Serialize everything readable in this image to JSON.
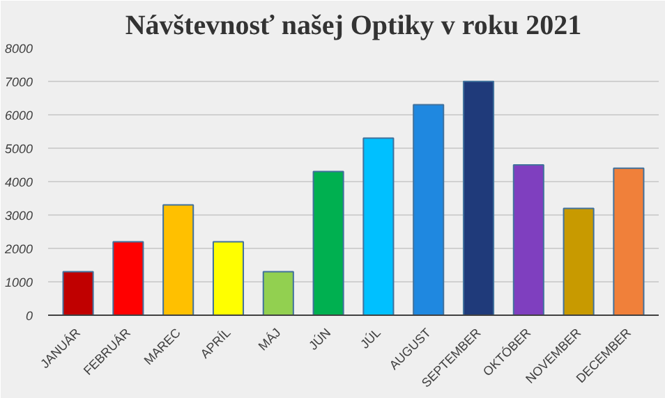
{
  "chart_data": {
    "type": "bar",
    "title": "Návštevnosť našej Optiky v roku 2021",
    "categories": [
      "JANUÁR",
      "FEBRUÁR",
      "MAREC",
      "APRÍL",
      "MÁJ",
      "JÚN",
      "JÚL",
      "AUGUST",
      "SEPTEMBER",
      "OKTÓBER",
      "NOVEMBER",
      "DECEMBER"
    ],
    "values": [
      1300,
      2200,
      3300,
      2200,
      1300,
      4300,
      5300,
      6300,
      7000,
      4500,
      3200,
      4400
    ],
    "colors": [
      "#c00000",
      "#ff0000",
      "#ffc000",
      "#ffff00",
      "#92d050",
      "#00b050",
      "#00c0ff",
      "#1f88e0",
      "#1f3a7a",
      "#7f3fbf",
      "#c89a00",
      "#f0803a"
    ],
    "ylim": [
      0,
      8000
    ],
    "yticks": [
      0,
      1000,
      2000,
      3000,
      4000,
      5000,
      6000,
      7000,
      8000
    ],
    "grid": "y"
  }
}
